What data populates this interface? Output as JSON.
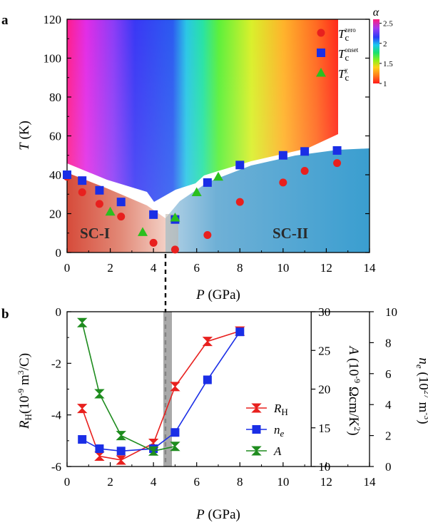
{
  "chart_data": [
    {
      "panel": "a",
      "type": "scatter",
      "xlabel_var": "P",
      "xlabel_unit": "(GPa)",
      "ylabel_var": "T",
      "ylabel_unit": "(K)",
      "xlim": [
        0,
        14
      ],
      "ylim": [
        0,
        120
      ],
      "x_ticks": [
        "0",
        "2",
        "4",
        "6",
        "8",
        "10",
        "12",
        "14"
      ],
      "y_ticks": [
        "0",
        "20",
        "40",
        "60",
        "80",
        "100",
        "120"
      ],
      "colorbar": {
        "label": "α",
        "ticks": [
          "1",
          "1.5",
          "2",
          "2.5"
        ],
        "range": [
          1,
          2.6
        ]
      },
      "regions": [
        "SC-I",
        "SC-II"
      ],
      "series": [
        {
          "name_base": "T",
          "name_sub": "c",
          "name_sup": "zero",
          "marker": "circle",
          "color": "#e8201e",
          "points": [
            [
              0,
              39
            ],
            [
              0.7,
              31
            ],
            [
              1.5,
              25
            ],
            [
              2.5,
              18.5
            ],
            [
              4,
              5
            ],
            [
              5,
              1.5
            ],
            [
              6.5,
              9
            ],
            [
              8,
              26
            ],
            [
              10,
              36
            ],
            [
              11,
              42
            ],
            [
              12.5,
              46
            ]
          ]
        },
        {
          "name_base": "T",
          "name_sub": "c",
          "name_sup": "onset",
          "marker": "square",
          "color": "#1a2ee6",
          "points": [
            [
              0,
              40
            ],
            [
              0.7,
              37
            ],
            [
              1.5,
              32
            ],
            [
              2.5,
              26
            ],
            [
              4,
              19.5
            ],
            [
              5,
              17
            ],
            [
              6.5,
              36
            ],
            [
              8,
              45
            ],
            [
              10,
              50
            ],
            [
              11,
              52
            ],
            [
              12.5,
              52.5
            ]
          ]
        },
        {
          "name_base": "T",
          "name_sub": "c",
          "name_sup": "χ",
          "marker": "triangle",
          "color": "#2bbf1e",
          "points": [
            [
              2,
              21
            ],
            [
              3.5,
              10.5
            ],
            [
              5,
              18
            ],
            [
              6,
              31
            ],
            [
              7,
              39
            ]
          ]
        }
      ]
    },
    {
      "panel": "b",
      "type": "line",
      "xlabel_var": "P",
      "xlabel_unit": "(GPa)",
      "xlim": [
        0,
        14
      ],
      "x_ticks": [
        "0",
        "2",
        "4",
        "6",
        "8",
        "10",
        "12",
        "14"
      ],
      "axes": {
        "left": {
          "label": "R_H (10^-9 m^3/C)",
          "lim": [
            -6,
            0
          ],
          "ticks": [
            "-6",
            "-4",
            "-2",
            "0"
          ]
        },
        "middle": {
          "label": "A (10^-9 Ωcm/K^2)",
          "lim": [
            10,
            30
          ],
          "ticks": [
            "10",
            "15",
            "20",
            "25",
            "30"
          ]
        },
        "right": {
          "label": "n_e (10^27 m^-3)",
          "lim": [
            0,
            10
          ],
          "ticks": [
            "0",
            "2",
            "4",
            "6",
            "8",
            "10"
          ]
        }
      },
      "shaded_band": [
        4.55,
        4.75
      ],
      "dashed_line_x": 4.6,
      "series": [
        {
          "name_base": "R",
          "name_sub": "H",
          "axis": "left",
          "marker": "hourglass",
          "color": "#e8201e",
          "points": [
            [
              0.7,
              -3.75
            ],
            [
              1.5,
              -5.6
            ],
            [
              2.5,
              -5.75
            ],
            [
              4,
              -5.1
            ],
            [
              5,
              -2.9
            ],
            [
              6.5,
              -1.15
            ],
            [
              8,
              -0.75
            ]
          ]
        },
        {
          "name_base": "n",
          "name_sub": "e",
          "axis": "right",
          "marker": "square",
          "color": "#1a2ee6",
          "points": [
            [
              0.7,
              1.75
            ],
            [
              1.5,
              1.15
            ],
            [
              2.5,
              1.0
            ],
            [
              4,
              1.15
            ],
            [
              5,
              2.2
            ],
            [
              6.5,
              5.6
            ],
            [
              8,
              8.7
            ]
          ]
        },
        {
          "name_base": "A",
          "name_sub": "",
          "axis": "middle",
          "marker": "hourglass",
          "color": "#1e8c1e",
          "points": [
            [
              0.7,
              28.6
            ],
            [
              1.5,
              19.4
            ],
            [
              2.5,
              14.0
            ],
            [
              4,
              12.0
            ],
            [
              5,
              12.6
            ]
          ]
        }
      ]
    }
  ]
}
